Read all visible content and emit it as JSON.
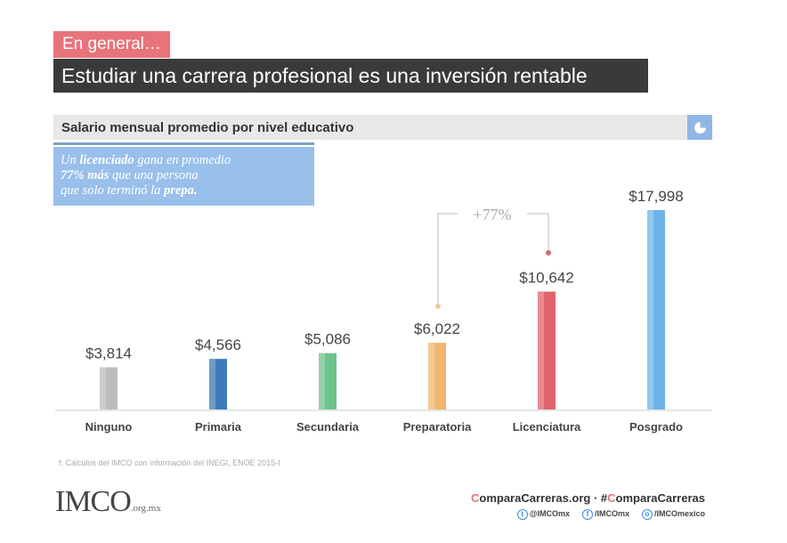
{
  "header": {
    "kicker": "En general…",
    "headline": "Estudiar una carrera profesional es una inversión rentable"
  },
  "subtitle": "Salario mensual promedio por nivel educativo",
  "callout": {
    "l1a": "Un ",
    "l1b": "licenciado",
    "l1c": " gana en promedio",
    "l2a": "77% más",
    "l2b": " que una persona",
    "l3a": "que solo terminó la ",
    "l3b": "prepa."
  },
  "annotation": "+77%",
  "source": "f: Cálculos del IMCO con información del INEGI, ENOE 2015-I",
  "footer": {
    "logo": "IMCO",
    "logo_suffix": ".org.mx",
    "brand_c1": "C",
    "brand_1": "omparaCarreras.org · #",
    "brand_c2": "C",
    "brand_2": "omparaCarreras",
    "twitter": "@IMCOmx",
    "facebook": "/IMCOmx",
    "instagram": "/IMCOmexico"
  },
  "colors": {
    "accent": "#e8737b",
    "callout": "#99bfeb"
  },
  "chart_data": {
    "type": "bar",
    "title": "Salario mensual promedio por nivel educativo",
    "categories": [
      "Ninguno",
      "Primaria",
      "Secundaria",
      "Preparatoria",
      "Licenciatura",
      "Posgrado"
    ],
    "values": [
      3814,
      4566,
      5086,
      6022,
      10642,
      17998
    ],
    "data_labels": [
      "$3,814",
      "$4,566",
      "$5,086",
      "$6,022",
      "$10,642",
      "$17,998"
    ],
    "colors": [
      "#bdbdbd",
      "#3d7ab8",
      "#6cc38c",
      "#f0b66e",
      "#e0636e",
      "#6db3ea"
    ],
    "ylim": [
      0,
      18000
    ],
    "grid": false,
    "legend": "none"
  }
}
